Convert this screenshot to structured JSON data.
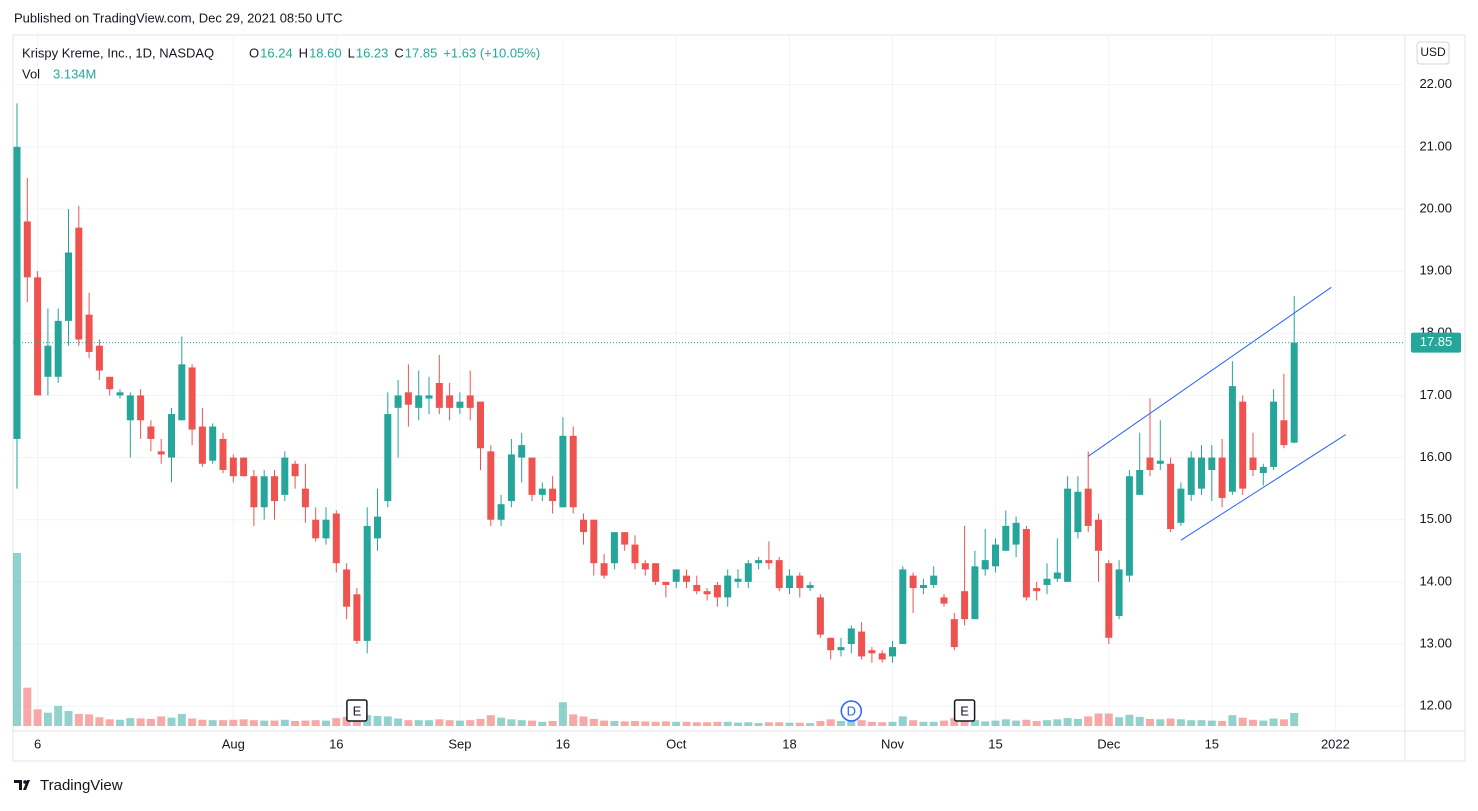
{
  "header": {
    "published": "Published on TradingView.com, Dec 29, 2021 08:50 UTC",
    "brand": "TradingView"
  },
  "chart_data": {
    "type": "candlestick",
    "title": "Krispy Kreme, Inc., 1D, NASDAQ",
    "legend_labels": [
      "O",
      "H",
      "L",
      "C"
    ],
    "legend": {
      "open": "16.24",
      "high": "18.60",
      "low": "16.23",
      "close": "17.85",
      "change": "+1.63 (+10.05%)"
    },
    "volume_label": "Vol",
    "volume_value": "3.134M",
    "currency": "USD",
    "last_price": {
      "value": 17.85,
      "label": "17.85"
    },
    "up_color": "#26a69a",
    "down_color": "#ef5350",
    "line_color": "#2962ff",
    "grid": true,
    "ylim": [
      11.6,
      22.8
    ],
    "yticks": [
      {
        "value": 12,
        "label": "12.00"
      },
      {
        "value": 13,
        "label": "13.00"
      },
      {
        "value": 14,
        "label": "14.00"
      },
      {
        "value": 15,
        "label": "15.00"
      },
      {
        "value": 16,
        "label": "16.00"
      },
      {
        "value": 17,
        "label": "17.00"
      },
      {
        "value": 18,
        "label": "18.00"
      },
      {
        "value": 19,
        "label": "19.00"
      },
      {
        "value": 20,
        "label": "20.00"
      },
      {
        "value": 21,
        "label": "21.00"
      },
      {
        "value": 22,
        "label": "22.00"
      }
    ],
    "xticks": [
      {
        "value": 2,
        "label": "6"
      },
      {
        "value": 21,
        "label": "Aug"
      },
      {
        "value": 31,
        "label": "16"
      },
      {
        "value": 43,
        "label": "Sep"
      },
      {
        "value": 53,
        "label": "16"
      },
      {
        "value": 64,
        "label": "Oct"
      },
      {
        "value": 75,
        "label": "18"
      },
      {
        "value": 85,
        "label": "Nov"
      },
      {
        "value": 95,
        "label": "15"
      },
      {
        "value": 106,
        "label": "Dec"
      },
      {
        "value": 116,
        "label": "15"
      },
      {
        "value": 128,
        "label": "2022"
      }
    ],
    "events": [
      {
        "index": 33,
        "label": "E"
      },
      {
        "index": 81,
        "label": "D"
      },
      {
        "index": 92,
        "label": "E"
      }
    ],
    "trendlines": [
      {
        "x": [
          104,
          127.6
        ],
        "y": [
          16.02,
          18.74
        ]
      },
      {
        "x": [
          113,
          129
        ],
        "y": [
          14.67,
          16.37
        ]
      }
    ],
    "open": [
      16.3,
      19.8,
      18.9,
      17.3,
      17.3,
      18.2,
      19.7,
      18.3,
      17.8,
      17.3,
      17.0,
      16.6,
      17.0,
      16.5,
      16.1,
      16.0,
      16.6,
      17.45,
      16.5,
      15.95,
      16.3,
      16.0,
      16.0,
      15.7,
      15.2,
      15.7,
      15.4,
      15.9,
      15.5,
      15.0,
      14.7,
      15.1,
      14.2,
      13.8,
      13.05,
      14.7,
      15.3,
      16.8,
      17.05,
      16.8,
      16.95,
      17.2,
      17.0,
      16.8,
      17.0,
      16.9,
      16.1,
      15.0,
      15.3,
      16.0,
      16.0,
      15.4,
      15.5,
      15.2,
      16.35,
      15.0,
      15.0,
      14.3,
      14.3,
      14.8,
      14.6,
      14.3,
      14.3,
      14.0,
      14.0,
      14.1,
      13.95,
      13.85,
      13.95,
      13.75,
      14.0,
      14.0,
      14.3,
      14.35,
      14.35,
      13.9,
      14.1,
      13.9,
      13.75,
      13.1,
      12.9,
      13.0,
      13.2,
      12.9,
      12.85,
      12.8,
      13.0,
      14.1,
      13.9,
      13.95,
      13.75,
      13.4,
      13.85,
      13.4,
      14.2,
      14.25,
      14.5,
      14.6,
      14.85,
      13.9,
      13.95,
      14.05,
      14.0,
      14.8,
      15.5,
      15.0,
      14.3,
      13.45,
      14.1,
      15.4,
      16.0,
      15.9,
      15.9,
      14.95,
      15.4,
      15.5,
      15.8,
      16.0,
      15.45,
      16.9,
      16.0,
      15.75,
      15.85,
      16.6,
      16.24
    ],
    "high": [
      21.7,
      20.5,
      19.0,
      18.4,
      18.4,
      20.0,
      20.05,
      18.65,
      17.9,
      17.3,
      17.1,
      17.05,
      17.1,
      16.6,
      16.3,
      16.8,
      17.95,
      17.5,
      16.8,
      16.55,
      16.4,
      16.05,
      16.0,
      15.8,
      15.8,
      15.8,
      16.1,
      15.95,
      15.9,
      15.2,
      15.2,
      15.15,
      14.3,
      13.9,
      15.2,
      15.5,
      17.05,
      17.25,
      17.5,
      17.4,
      17.3,
      17.65,
      17.2,
      17.05,
      17.4,
      16.9,
      16.2,
      15.4,
      16.3,
      16.4,
      16.0,
      15.6,
      15.7,
      16.65,
      16.5,
      15.1,
      15.0,
      14.45,
      14.8,
      14.8,
      14.75,
      14.35,
      14.3,
      14.0,
      14.2,
      14.2,
      14.1,
      13.9,
      14.0,
      14.2,
      14.2,
      14.35,
      14.4,
      14.65,
      14.4,
      14.2,
      14.15,
      14.0,
      13.8,
      13.1,
      13.1,
      13.3,
      13.35,
      12.95,
      12.9,
      13.05,
      14.25,
      14.15,
      14.05,
      14.25,
      13.8,
      13.5,
      14.9,
      14.5,
      14.85,
      14.7,
      15.15,
      15.05,
      14.9,
      14.0,
      14.3,
      14.7,
      15.7,
      15.7,
      16.1,
      15.1,
      14.35,
      14.35,
      15.8,
      16.4,
      16.95,
      16.6,
      16.0,
      15.6,
      16.1,
      16.2,
      16.2,
      16.3,
      17.55,
      17.0,
      16.4,
      15.9,
      17.1,
      17.35,
      18.6
    ],
    "low": [
      15.5,
      18.5,
      17.0,
      17.0,
      17.2,
      17.8,
      17.8,
      17.6,
      17.25,
      17.0,
      16.95,
      16.0,
      16.3,
      16.1,
      15.9,
      15.6,
      16.6,
      16.2,
      15.85,
      15.9,
      15.75,
      15.6,
      15.7,
      14.9,
      15.0,
      15.0,
      15.3,
      15.5,
      14.95,
      14.65,
      14.6,
      14.15,
      13.4,
      13.0,
      12.85,
      14.5,
      15.2,
      16.0,
      16.5,
      16.6,
      16.7,
      16.7,
      16.6,
      16.7,
      16.6,
      15.8,
      14.9,
      14.9,
      15.2,
      15.6,
      15.3,
      15.3,
      15.1,
      15.2,
      15.1,
      14.6,
      14.1,
      14.05,
      14.2,
      14.5,
      14.2,
      14.1,
      13.95,
      13.75,
      13.9,
      13.9,
      13.8,
      13.7,
      13.6,
      13.6,
      13.9,
      13.9,
      14.2,
      14.2,
      13.85,
      13.8,
      13.75,
      13.85,
      13.1,
      12.75,
      12.8,
      12.85,
      12.75,
      12.7,
      12.7,
      12.7,
      13.0,
      13.5,
      13.8,
      13.9,
      13.6,
      12.9,
      13.3,
      13.4,
      14.1,
      14.15,
      14.5,
      14.4,
      13.7,
      13.7,
      13.8,
      14.0,
      14.0,
      14.7,
      14.8,
      14.0,
      13.0,
      13.4,
      14.0,
      15.4,
      15.7,
      15.8,
      14.8,
      14.9,
      15.3,
      15.4,
      15.3,
      15.2,
      15.4,
      15.4,
      15.7,
      15.55,
      15.8,
      16.15,
      16.23
    ],
    "close": [
      21.0,
      18.9,
      17.0,
      17.8,
      18.2,
      19.3,
      17.9,
      17.7,
      17.4,
      17.1,
      17.05,
      17.0,
      16.6,
      16.3,
      16.05,
      16.7,
      17.5,
      16.45,
      15.9,
      16.5,
      15.8,
      15.7,
      15.7,
      15.2,
      15.7,
      15.3,
      16.0,
      15.7,
      15.2,
      14.7,
      15.0,
      14.3,
      13.6,
      13.05,
      14.9,
      15.05,
      16.7,
      17.0,
      16.85,
      17.0,
      17.0,
      16.8,
      16.8,
      16.9,
      16.8,
      16.15,
      15.0,
      15.25,
      16.05,
      16.2,
      15.4,
      15.5,
      15.3,
      16.35,
      15.2,
      14.8,
      14.3,
      14.1,
      14.8,
      14.6,
      14.3,
      14.2,
      14.0,
      13.95,
      14.2,
      14.0,
      13.85,
      13.8,
      13.75,
      14.1,
      14.05,
      14.3,
      14.35,
      14.3,
      13.9,
      14.1,
      13.9,
      13.95,
      13.15,
      12.9,
      12.95,
      13.25,
      12.8,
      12.85,
      12.75,
      12.95,
      14.2,
      13.9,
      13.95,
      14.1,
      13.65,
      12.95,
      13.4,
      14.25,
      14.35,
      14.6,
      14.9,
      14.95,
      13.75,
      13.85,
      14.05,
      14.15,
      15.5,
      15.45,
      14.9,
      14.5,
      13.1,
      14.2,
      15.7,
      15.8,
      15.8,
      15.95,
      14.85,
      15.5,
      16.0,
      16.0,
      16.0,
      15.35,
      17.15,
      15.5,
      15.8,
      15.85,
      16.9,
      16.2,
      17.85
    ],
    "volume": [
      41.5,
      9.2,
      4.0,
      3.2,
      4.8,
      3.6,
      2.9,
      2.8,
      2.1,
      1.6,
      1.5,
      1.9,
      1.8,
      1.7,
      2.3,
      2.0,
      2.9,
      1.8,
      1.5,
      1.4,
      1.4,
      1.5,
      1.6,
      1.4,
      1.3,
      1.3,
      1.5,
      1.2,
      1.3,
      1.4,
      1.3,
      1.9,
      2.2,
      3.0,
      2.6,
      2.4,
      2.3,
      1.8,
      1.4,
      1.4,
      1.4,
      1.6,
      1.4,
      1.3,
      1.4,
      1.7,
      2.6,
      2.0,
      1.6,
      1.4,
      1.3,
      1.0,
      1.2,
      5.7,
      2.8,
      2.3,
      1.7,
      1.3,
      1.2,
      1.1,
      1.2,
      1.1,
      1.0,
      1.1,
      1.0,
      1.0,
      0.9,
      0.9,
      1.0,
      1.0,
      0.8,
      0.9,
      0.7,
      0.9,
      0.9,
      0.8,
      0.8,
      0.7,
      1.2,
      1.6,
      1.2,
      1.1,
      1.4,
      1.0,
      0.9,
      1.0,
      2.3,
      1.4,
      1.0,
      1.0,
      1.3,
      1.9,
      1.6,
      1.4,
      1.1,
      1.3,
      1.6,
      1.3,
      1.5,
      1.2,
      1.4,
      1.6,
      1.9,
      1.7,
      2.3,
      3.0,
      3.0,
      2.1,
      2.7,
      2.2,
      1.7,
      1.6,
      1.8,
      1.6,
      1.4,
      1.4,
      1.3,
      1.2,
      2.6,
      2.0,
      1.5,
      1.3,
      1.8,
      1.6,
      3.134
    ]
  }
}
